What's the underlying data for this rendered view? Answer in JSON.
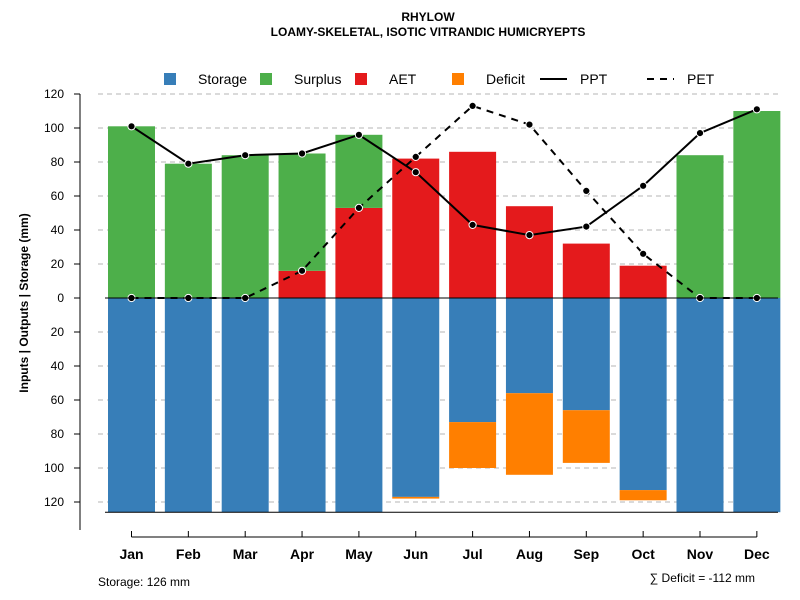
{
  "chart_data": {
    "type": "bar",
    "title": "RHYLOW",
    "subtitle": "LOAMY-SKELETAL, ISOTIC VITRANDIC HUMICRYEPTS",
    "ylabel": "Inputs | Outputs | Storage    (mm)",
    "ylim": [
      -126,
      120
    ],
    "y_ticks": [
      120,
      100,
      80,
      60,
      40,
      20,
      0,
      -20,
      -40,
      -60,
      -80,
      -100,
      -120
    ],
    "y_tick_labels": [
      "120",
      "100",
      "80",
      "60",
      "40",
      "20",
      "0",
      "20",
      "40",
      "60",
      "80",
      "100",
      "120"
    ],
    "categories": [
      "Jan",
      "Feb",
      "Mar",
      "Apr",
      "May",
      "Jun",
      "Jul",
      "Aug",
      "Sep",
      "Oct",
      "Nov",
      "Dec"
    ],
    "legend": {
      "placement": "top",
      "entries": [
        {
          "label": "Storage",
          "kind": "square",
          "color": "#377EB8"
        },
        {
          "label": "Surplus",
          "kind": "square",
          "color": "#4DAF4A"
        },
        {
          "label": "AET",
          "kind": "square",
          "color": "#E41A1C"
        },
        {
          "label": "Deficit",
          "kind": "square",
          "color": "#FF7F00"
        },
        {
          "label": "PPT",
          "kind": "solid-line",
          "color": "#000000"
        },
        {
          "label": "PET",
          "kind": "dashed-line",
          "color": "#000000"
        }
      ]
    },
    "series": [
      {
        "name": "Storage",
        "color": "#377EB8",
        "values": [
          126,
          126,
          126,
          126,
          126,
          117,
          73,
          56,
          66,
          113,
          126,
          126
        ]
      },
      {
        "name": "Surplus",
        "color": "#4DAF4A",
        "values": [
          101,
          79,
          84,
          69,
          43,
          0,
          0,
          0,
          0,
          0,
          84,
          110
        ]
      },
      {
        "name": "AET",
        "color": "#E41A1C",
        "values": [
          0,
          0,
          0,
          16,
          53,
          82,
          86,
          54,
          32,
          19,
          0,
          0
        ]
      },
      {
        "name": "Deficit",
        "color": "#FF7F00",
        "values": [
          0,
          0,
          0,
          0,
          0,
          1,
          27,
          48,
          31,
          6,
          0,
          0
        ]
      },
      {
        "name": "PPT",
        "color": "#000000",
        "values": [
          101,
          79,
          84,
          85,
          96,
          74,
          43,
          37,
          42,
          66,
          97,
          111
        ]
      },
      {
        "name": "PET",
        "color": "#000000",
        "values": [
          0,
          0,
          0,
          16,
          53,
          83,
          113,
          102,
          63,
          26,
          0,
          0
        ]
      }
    ],
    "footer_left": "Storage: 126 mm",
    "footer_right": "∑ Deficit = -112 mm"
  }
}
